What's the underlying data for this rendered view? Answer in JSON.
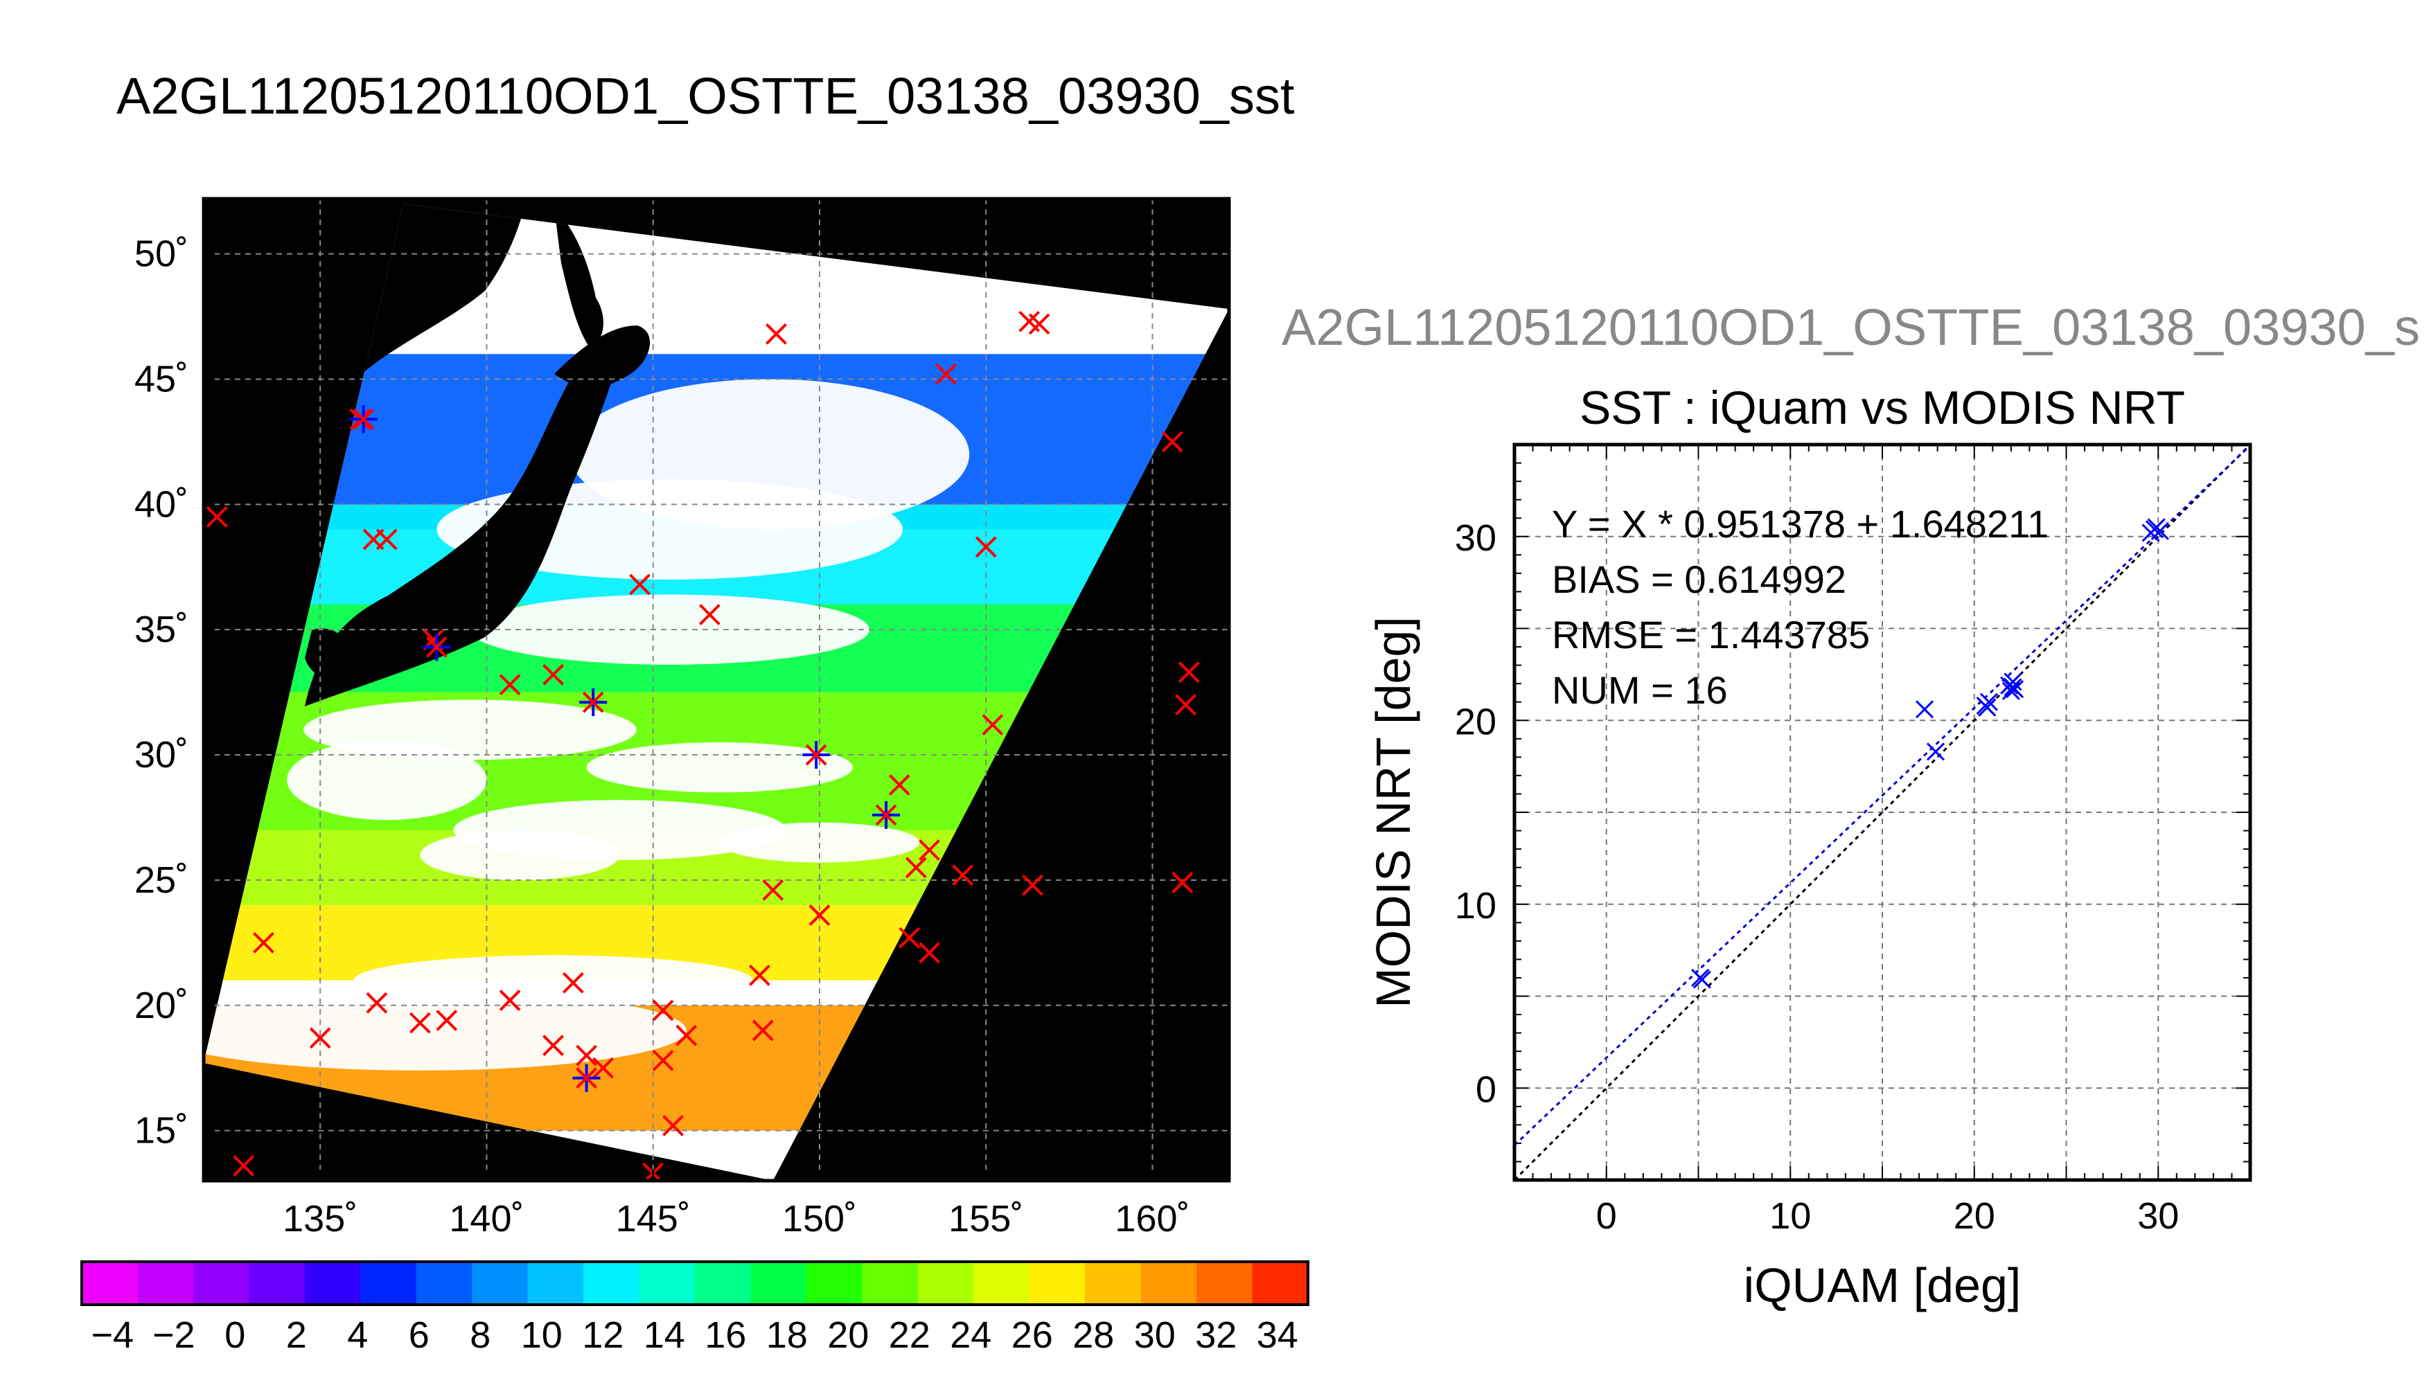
{
  "page_title": "A2GL11205120110OD1_OSTTE_03138_03930_sst",
  "chart_data": [
    {
      "type": "heatmap",
      "subtype": "satellite SST map",
      "xlabel": "",
      "ylabel": "",
      "xlim": [
        131.5,
        162.3
      ],
      "ylim": [
        13.0,
        52.2
      ],
      "x_ticks": [
        135,
        140,
        145,
        150,
        155,
        160
      ],
      "y_ticks": [
        15,
        20,
        25,
        30,
        35,
        40,
        45,
        50
      ],
      "x_tick_labels": [
        "135˚",
        "140˚",
        "145˚",
        "150˚",
        "155˚",
        "160˚"
      ],
      "y_tick_labels": [
        "15˚",
        "20˚",
        "25˚",
        "30˚",
        "35˚",
        "40˚",
        "45˚",
        "50˚"
      ],
      "grid": true,
      "background_color": "#000000",
      "cloud_color": "#ffffff",
      "swath_corners_lonlat": [
        [
          137.5,
          52.0
        ],
        [
          162.3,
          47.8
        ],
        [
          148.6,
          13.0
        ],
        [
          131.5,
          17.7
        ]
      ],
      "sst_bands": [
        {
          "lat_range": [
            39.0,
            46.0
          ],
          "sst": 6
        },
        {
          "lat_range": [
            36.0,
            40.0
          ],
          "sst": 13
        },
        {
          "lat_range": [
            32.5,
            36.0
          ],
          "sst": 18
        },
        {
          "lat_range": [
            27.0,
            32.5
          ],
          "sst": 21
        },
        {
          "lat_range": [
            24.0,
            27.0
          ],
          "sst": 24
        },
        {
          "lat_range": [
            21.0,
            24.0
          ],
          "sst": 27
        },
        {
          "lat_range": [
            15.0,
            20.0
          ],
          "sst": 30
        }
      ],
      "matchups_red_x": [
        [
          131.9,
          39.5
        ],
        [
          136.2,
          43.4
        ],
        [
          136.6,
          38.6
        ],
        [
          137.0,
          38.6
        ],
        [
          138.4,
          34.6
        ],
        [
          140.7,
          32.8
        ],
        [
          142.0,
          33.2
        ],
        [
          144.6,
          36.8
        ],
        [
          146.7,
          35.6
        ],
        [
          148.7,
          46.8
        ],
        [
          153.8,
          45.2
        ],
        [
          155.0,
          38.3
        ],
        [
          156.3,
          47.3
        ],
        [
          156.6,
          47.2
        ],
        [
          155.2,
          31.2
        ],
        [
          156.4,
          24.8
        ],
        [
          160.6,
          42.5
        ],
        [
          161.1,
          33.3
        ],
        [
          161.0,
          32.0
        ],
        [
          160.9,
          24.9
        ],
        [
          152.4,
          28.8
        ],
        [
          153.3,
          26.2
        ],
        [
          152.9,
          25.5
        ],
        [
          154.3,
          25.2
        ],
        [
          152.7,
          22.7
        ],
        [
          153.3,
          22.1
        ],
        [
          148.6,
          24.6
        ],
        [
          150.0,
          23.6
        ],
        [
          148.2,
          21.2
        ],
        [
          148.3,
          19.0
        ],
        [
          133.3,
          22.5
        ],
        [
          135.0,
          18.7
        ],
        [
          136.7,
          20.1
        ],
        [
          138.0,
          19.3
        ],
        [
          138.8,
          19.4
        ],
        [
          140.7,
          20.2
        ],
        [
          142.0,
          18.4
        ],
        [
          142.6,
          20.9
        ],
        [
          143.0,
          18.0
        ],
        [
          143.5,
          17.5
        ],
        [
          145.3,
          19.8
        ],
        [
          145.3,
          17.8
        ],
        [
          146.0,
          18.8
        ],
        [
          145.6,
          15.2
        ],
        [
          145.0,
          13.3
        ],
        [
          132.7,
          13.6
        ]
      ],
      "matchups_blue_star": [
        [
          136.3,
          43.4
        ],
        [
          138.5,
          34.3
        ],
        [
          143.2,
          32.1
        ],
        [
          149.9,
          30.0
        ],
        [
          152.0,
          27.6
        ],
        [
          143.0,
          17.1
        ]
      ]
    },
    {
      "type": "colorbar",
      "tick_labels": [
        "−4",
        "−2",
        "0",
        "2",
        "4",
        "6",
        "8",
        "10",
        "12",
        "14",
        "16",
        "18",
        "20",
        "22",
        "24",
        "26",
        "28",
        "30",
        "32",
        "34"
      ],
      "range": [
        -5,
        35
      ],
      "segment_colors": [
        "#ee00ff",
        "#c100ff",
        "#9400ff",
        "#6a00ff",
        "#3000ff",
        "#0024ff",
        "#005cff",
        "#0090ff",
        "#00c0ff",
        "#00f0ff",
        "#00ffcc",
        "#00ff88",
        "#00ff44",
        "#22ff00",
        "#66ff00",
        "#aaff00",
        "#ddff00",
        "#ffee00",
        "#ffc000",
        "#ff9900",
        "#ff6a00",
        "#ff2a00"
      ]
    },
    {
      "type": "scatter",
      "super_title": "A2GL11205120110OD1_OSTTE_03138_03930_s",
      "title": "SST : iQuam vs MODIS NRT",
      "xlabel": "iQUAM [deg]",
      "ylabel": "MODIS NRT [deg]",
      "xlim": [
        -5,
        35
      ],
      "ylim": [
        -5,
        35
      ],
      "x_ticks": [
        0,
        10,
        20,
        30
      ],
      "y_ticks": [
        0,
        10,
        20,
        30
      ],
      "grid": true,
      "stats": [
        "Y = X * 0.951378 + 1.648211",
        "BIAS = 0.614992",
        "RMSE = 1.443785",
        "NUM = 16"
      ],
      "regression": {
        "slope": 0.951378,
        "intercept": 1.648211,
        "color": "#0000cc"
      },
      "identity_line_color": "#000000",
      "marker_color": "#0000ff",
      "points": [
        [
          5.1,
          6.0
        ],
        [
          17.3,
          20.6
        ],
        [
          17.9,
          18.3
        ],
        [
          20.6,
          20.8
        ],
        [
          20.8,
          21.0
        ],
        [
          21.9,
          21.9
        ],
        [
          22.1,
          22.1
        ],
        [
          22.2,
          21.7
        ],
        [
          22.0,
          21.6
        ],
        [
          29.6,
          30.2
        ],
        [
          29.9,
          30.5
        ],
        [
          30.1,
          30.3
        ],
        [
          20.7,
          20.7
        ],
        [
          22.1,
          21.8
        ],
        [
          29.8,
          30.4
        ],
        [
          5.2,
          5.9
        ]
      ]
    }
  ]
}
